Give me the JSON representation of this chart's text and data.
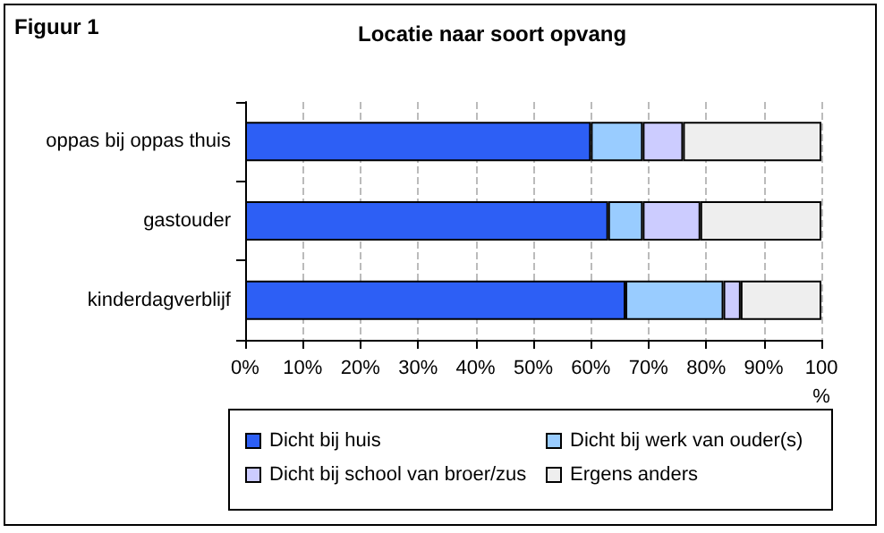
{
  "chart_data": {
    "type": "bar",
    "orientation": "horizontal",
    "stacked": true,
    "title": "Locatie naar soort opvang",
    "annotations": [
      "Figuur 1"
    ],
    "categories": [
      "oppas bij oppas thuis",
      "gastouder",
      "kinderdagverblijf"
    ],
    "series": [
      {
        "name": "Dicht bij huis",
        "color": "#2d5ff5",
        "values": [
          60,
          63,
          66
        ]
      },
      {
        "name": "Dicht bij werk van ouder(s)",
        "color": "#99ccff",
        "values": [
          9,
          6,
          17
        ]
      },
      {
        "name": "Dicht bij school van broer/zus",
        "color": "#ccccff",
        "values": [
          7,
          10,
          3
        ]
      },
      {
        "name": "Ergens anders",
        "color": "#eeeeee",
        "values": [
          24,
          21,
          14
        ]
      }
    ],
    "xlim": [
      0,
      100
    ],
    "xticks": [
      {
        "value": 0,
        "label": "0%"
      },
      {
        "value": 10,
        "label": "10%"
      },
      {
        "value": 20,
        "label": "20%"
      },
      {
        "value": 30,
        "label": "30%"
      },
      {
        "value": 40,
        "label": "40%"
      },
      {
        "value": 50,
        "label": "50%"
      },
      {
        "value": 60,
        "label": "60%"
      },
      {
        "value": 70,
        "label": "70%"
      },
      {
        "value": 80,
        "label": "80%"
      },
      {
        "value": 90,
        "label": "90%"
      },
      {
        "value": 100,
        "label": "100 %"
      }
    ],
    "grid": "x",
    "legend": "bottom"
  }
}
